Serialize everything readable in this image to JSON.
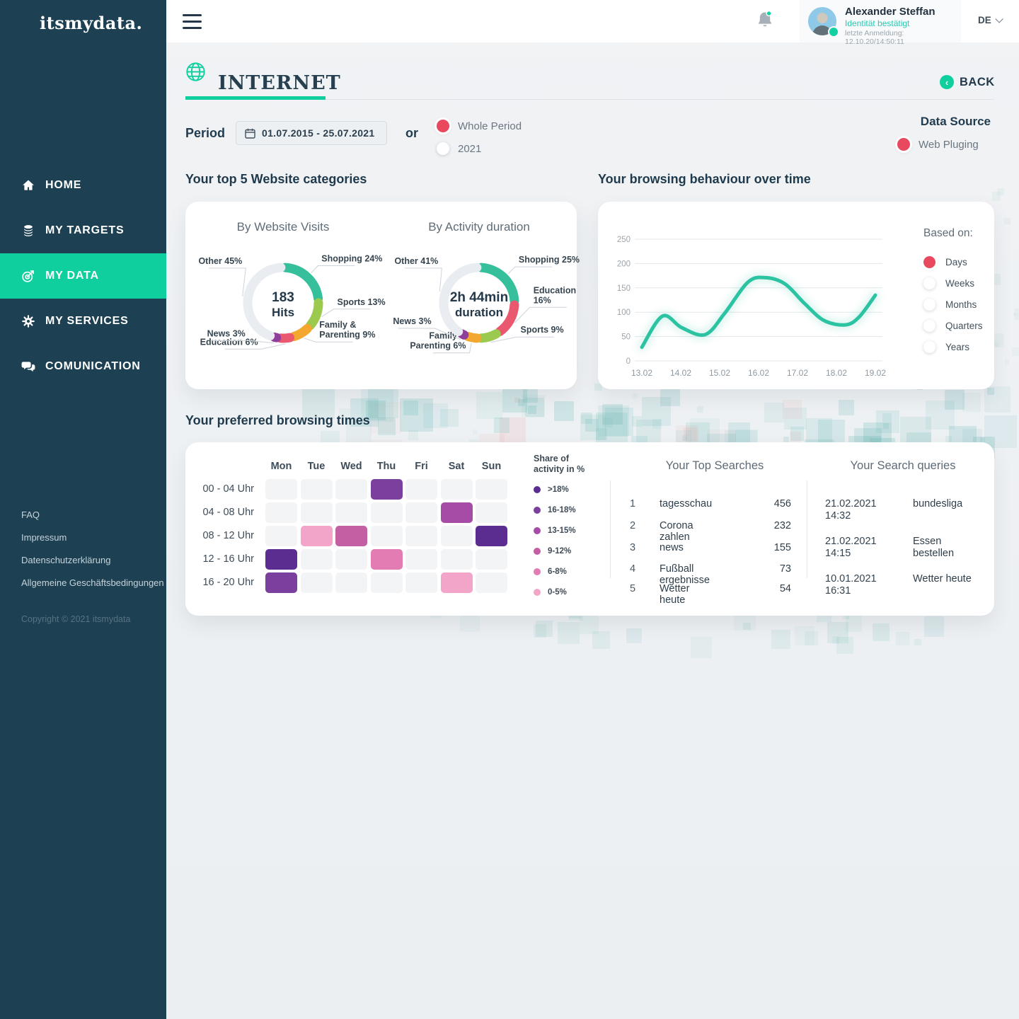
{
  "brand": {
    "logo": "itsmydata."
  },
  "sidebar": {
    "nav": [
      {
        "label": "HOME",
        "icon": "home-icon",
        "active": false
      },
      {
        "label": "MY TARGETS",
        "icon": "targets-icon",
        "active": false
      },
      {
        "label": "MY DATA",
        "icon": "my-data-icon",
        "active": true
      },
      {
        "label": "MY SERVICES",
        "icon": "services-icon",
        "active": false
      },
      {
        "label": "COMUNICATION",
        "icon": "communication-icon",
        "active": false
      }
    ],
    "footer_links": [
      "FAQ",
      "Impressum",
      "Datenschutzerklärung",
      "Allgemeine Geschäftsbedingungen"
    ],
    "copyright": "Copyright © 2021 itsmydata"
  },
  "topbar": {
    "user": {
      "name": "Alexander Steffan",
      "status": "Identität bestätigt",
      "last_login": "letzte Anmeldung: 12.10.20/14:50:11"
    },
    "language": "DE"
  },
  "page": {
    "title": "INTERNET",
    "back_label": "BACK"
  },
  "filters": {
    "period_label": "Period",
    "date_range": "01.07.2015 - 25.07.2021",
    "or_label": "or",
    "period_options": [
      {
        "label": "Whole Period",
        "selected": true
      },
      {
        "label": "2021",
        "selected": false
      }
    ],
    "data_source_label": "Data Source",
    "data_source_option": {
      "label": "Web Pluging",
      "selected": true
    }
  },
  "sections": {
    "top_categories": "Your top 5 Website categories",
    "behaviour": "Your browsing behaviour over time",
    "preferred_times": "Your preferred browsing times"
  },
  "chart_data": [
    {
      "id": "visits-donut",
      "type": "pie",
      "title": "By Website Visits",
      "center_value": "183",
      "center_label": "Hits",
      "segments": [
        {
          "label": "Shopping 24%",
          "value": 24,
          "color": "#35c09b"
        },
        {
          "label": "Sports 13%",
          "value": 13,
          "color": "#9bca4f"
        },
        {
          "label": "Family &\nParenting 9%",
          "value": 9,
          "color": "#f3a72e"
        },
        {
          "label": "Education 6%",
          "value": 6,
          "color": "#e9586f"
        },
        {
          "label": "News 3%",
          "value": 3,
          "color": "#8f3f9b"
        },
        {
          "label": "Other 45%",
          "value": 45,
          "color": "#e9edf2"
        }
      ]
    },
    {
      "id": "duration-donut",
      "type": "pie",
      "title": "By Activity duration",
      "center_value": "2h 44min",
      "center_label": "duration",
      "segments": [
        {
          "label": "Shopping 25%",
          "value": 25,
          "color": "#35c09b"
        },
        {
          "label": "Education\n16%",
          "value": 16,
          "color": "#e9586f"
        },
        {
          "label": "Sports 9%",
          "value": 9,
          "color": "#9bca4f"
        },
        {
          "label": "Family &\nParenting 6%",
          "value": 6,
          "color": "#f3a72e"
        },
        {
          "label": "News 3%",
          "value": 3,
          "color": "#8f3f9b"
        },
        {
          "label": "Other 41%",
          "value": 41,
          "color": "#e9edf2"
        }
      ]
    },
    {
      "id": "behaviour-line",
      "type": "line",
      "color": "#2cc3a3",
      "x_ticks": [
        "13.02",
        "14.02",
        "15.02",
        "16.02",
        "17.02",
        "18.02",
        "19.02"
      ],
      "y_ticks": [
        0,
        50,
        100,
        150,
        200,
        250
      ],
      "xlim": [
        13.02,
        19.02
      ],
      "ylim": [
        0,
        250
      ],
      "points": [
        [
          13.02,
          28
        ],
        [
          13.55,
          92
        ],
        [
          14.05,
          68
        ],
        [
          14.65,
          54
        ],
        [
          15.15,
          98
        ],
        [
          15.75,
          162
        ],
        [
          16.2,
          171
        ],
        [
          16.7,
          158
        ],
        [
          17.2,
          118
        ],
        [
          17.7,
          83
        ],
        [
          18.25,
          74
        ],
        [
          18.6,
          90
        ],
        [
          19.02,
          135
        ]
      ],
      "based_on": {
        "label": "Based on:",
        "options": [
          {
            "label": "Days",
            "selected": true
          },
          {
            "label": "Weeks",
            "selected": false
          },
          {
            "label": "Months",
            "selected": false
          },
          {
            "label": "Quarters",
            "selected": false
          },
          {
            "label": "Years",
            "selected": false
          }
        ]
      }
    },
    {
      "id": "times-heatmap",
      "type": "heatmap",
      "columns": [
        "Mon",
        "Tue",
        "Wed",
        "Thu",
        "Fri",
        "Sat",
        "Sun"
      ],
      "rows": [
        "00 - 04 Uhr",
        "04 - 08 Uhr",
        "08 - 12 Uhr",
        "12 - 16 Uhr",
        "16 - 20 Uhr"
      ],
      "legend_title": "Share of activity in %",
      "legend": [
        {
          "label": ">18%",
          "color": "#5c2d91"
        },
        {
          "label": "16-18%",
          "color": "#7b3f9e"
        },
        {
          "label": "13-15%",
          "color": "#a64ca6"
        },
        {
          "label": "9-12%",
          "color": "#c45fa4"
        },
        {
          "label": "6-8%",
          "color": "#e27cb2"
        },
        {
          "label": "0-5%",
          "color": "#f2a5c8"
        }
      ],
      "empty_color": "#f3f4f6",
      "cells": [
        {
          "row": 0,
          "col": 3,
          "bucket": "16-18%"
        },
        {
          "row": 1,
          "col": 5,
          "bucket": "13-15%"
        },
        {
          "row": 2,
          "col": 1,
          "bucket": "0-5%"
        },
        {
          "row": 2,
          "col": 2,
          "bucket": "9-12%"
        },
        {
          "row": 2,
          "col": 6,
          "bucket": ">18%"
        },
        {
          "row": 3,
          "col": 0,
          "bucket": ">18%"
        },
        {
          "row": 3,
          "col": 3,
          "bucket": "6-8%"
        },
        {
          "row": 4,
          "col": 0,
          "bucket": "16-18%"
        },
        {
          "row": 4,
          "col": 5,
          "bucket": "0-5%"
        }
      ]
    }
  ],
  "top_searches": {
    "title": "Your Top Searches",
    "rows": [
      {
        "rank": "1",
        "term": "tagesschau",
        "count": "456"
      },
      {
        "rank": "2",
        "term": "Corona zahlen",
        "count": "232"
      },
      {
        "rank": "3",
        "term": "news",
        "count": "155"
      },
      {
        "rank": "4",
        "term": "Fußball ergebnisse",
        "count": "73"
      },
      {
        "rank": "5",
        "term": "Wetter heute",
        "count": "54"
      }
    ]
  },
  "search_queries": {
    "title": "Your Search queries",
    "rows": [
      {
        "date": "21.02.2021",
        "time": "14:32",
        "query": "bundesliga"
      },
      {
        "date": "21.02.2021",
        "time": "14:15",
        "query": "Essen bestellen"
      },
      {
        "date": "10.01.2021",
        "time": "16:31",
        "query": "Wetter heute"
      }
    ]
  }
}
